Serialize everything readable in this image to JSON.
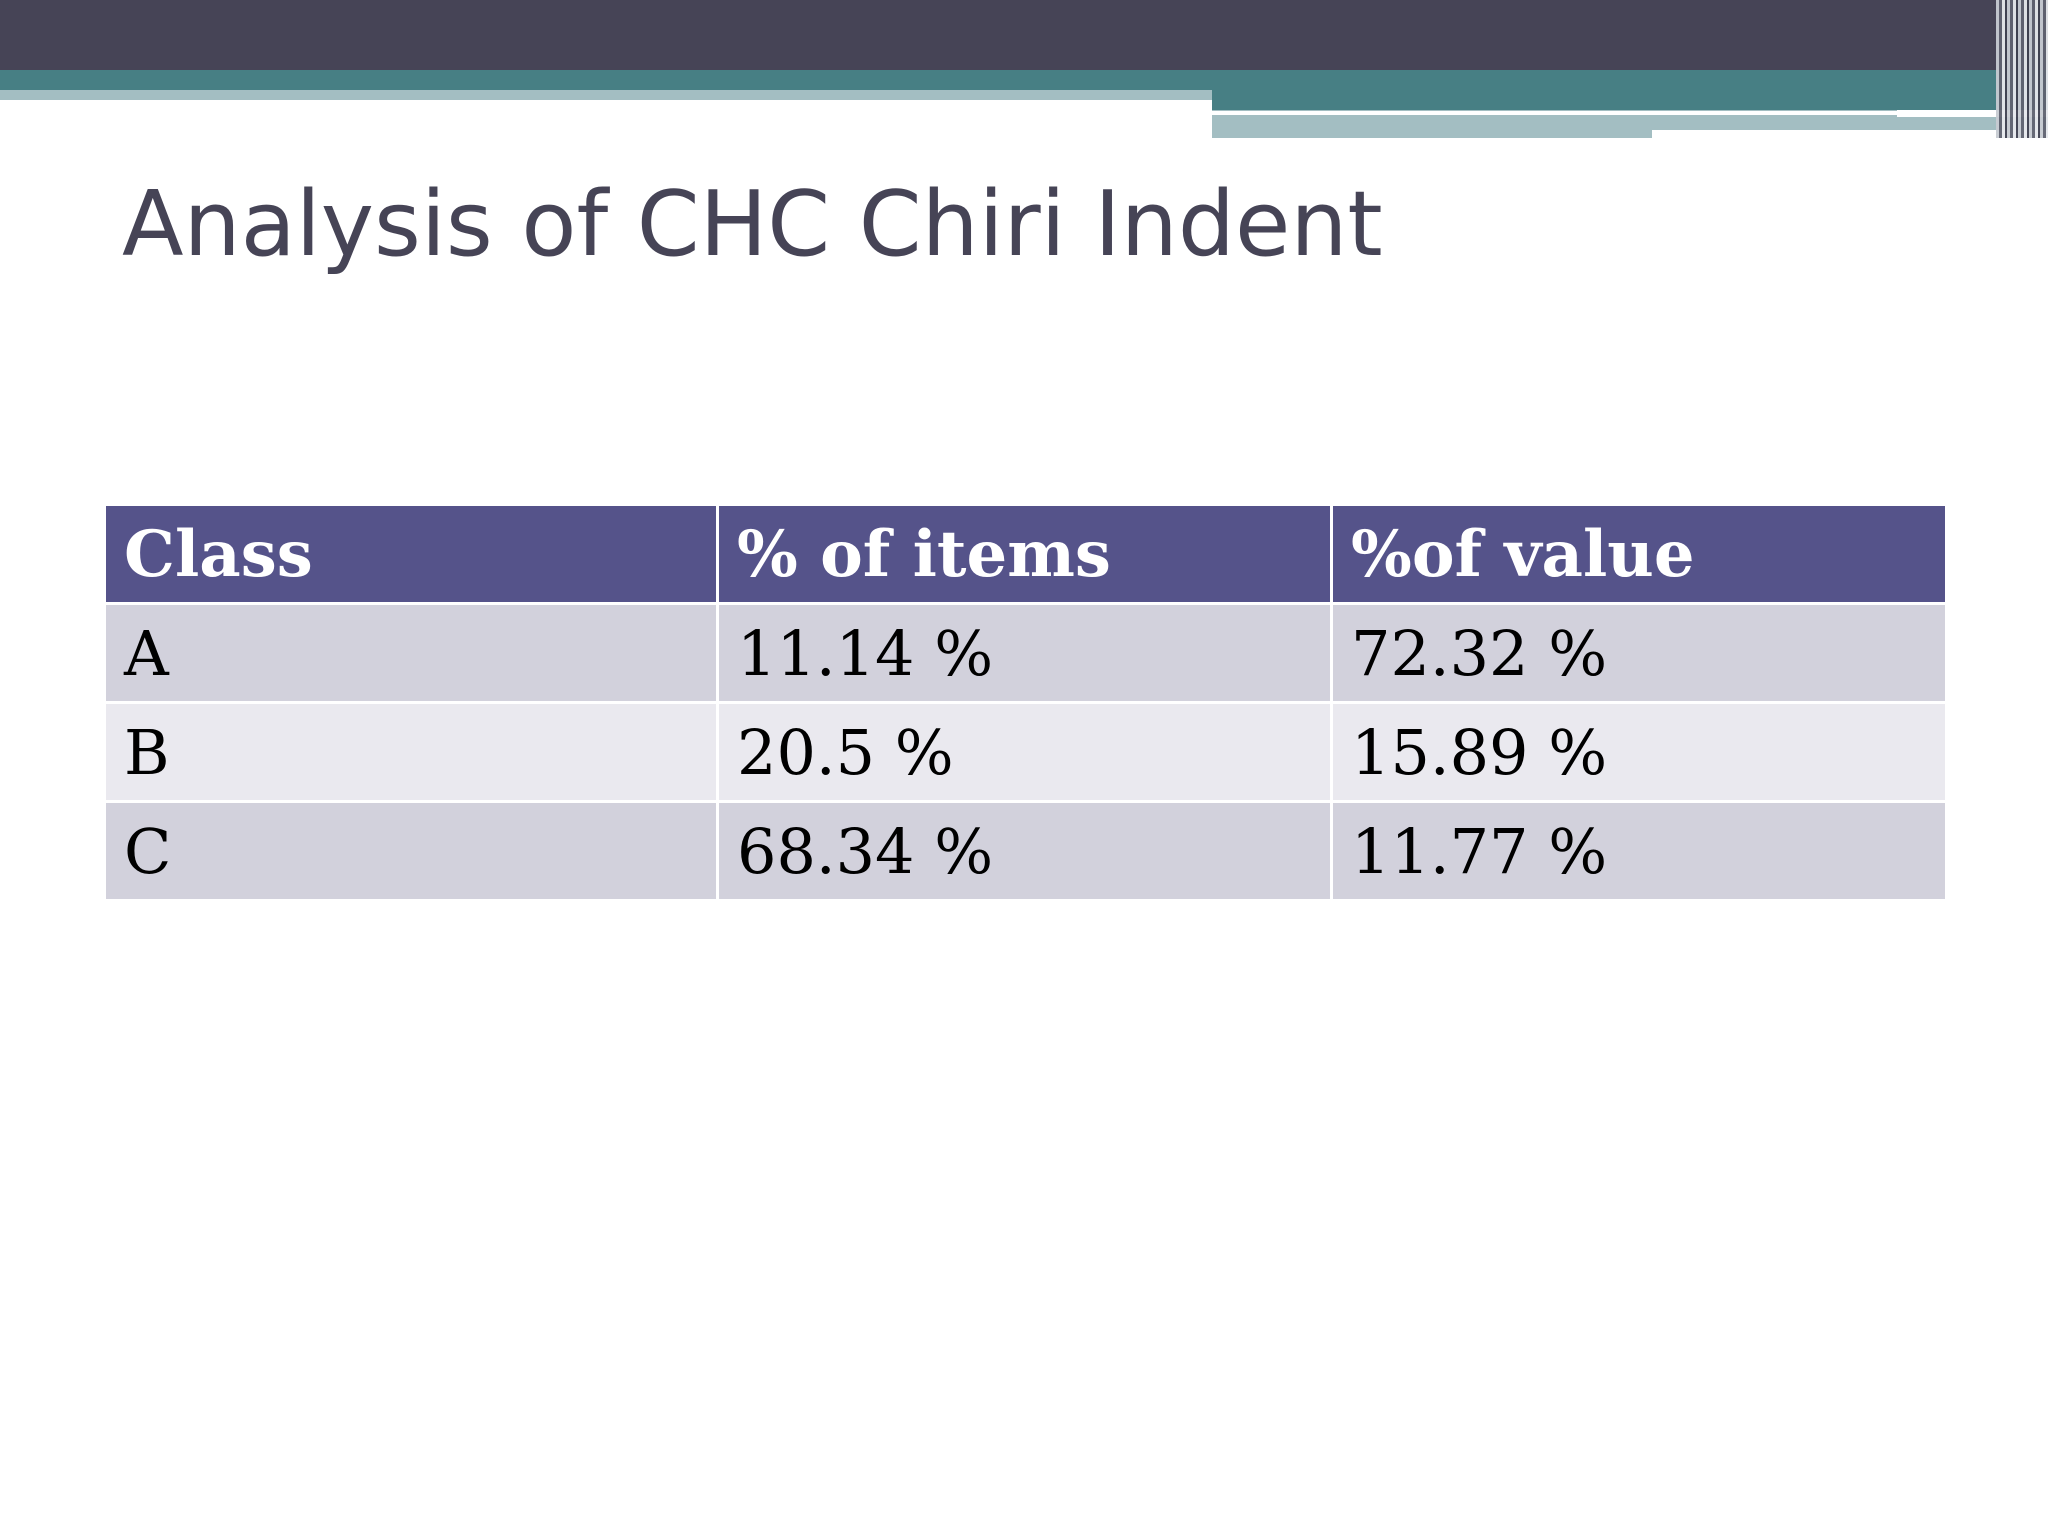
{
  "slide": {
    "title": "Analysis of CHC Chiri Indent"
  },
  "table": {
    "headers": [
      "Class",
      "% of items",
      "%of value"
    ],
    "rows": [
      [
        "A",
        "11.14 %",
        "72.32 %"
      ],
      [
        "B",
        "20.5 %",
        "15.89 %"
      ],
      [
        "C",
        "68.34 %",
        "11.77 %"
      ]
    ]
  },
  "colors": {
    "header_bar_dark": "#464456",
    "header_bar_teal": "#477f84",
    "header_bar_light": "#a3bec2",
    "title_text": "#464456",
    "table_header_bg": "#55538a",
    "table_row_dark": "#d2d1dc",
    "table_row_light": "#eae9ef"
  }
}
